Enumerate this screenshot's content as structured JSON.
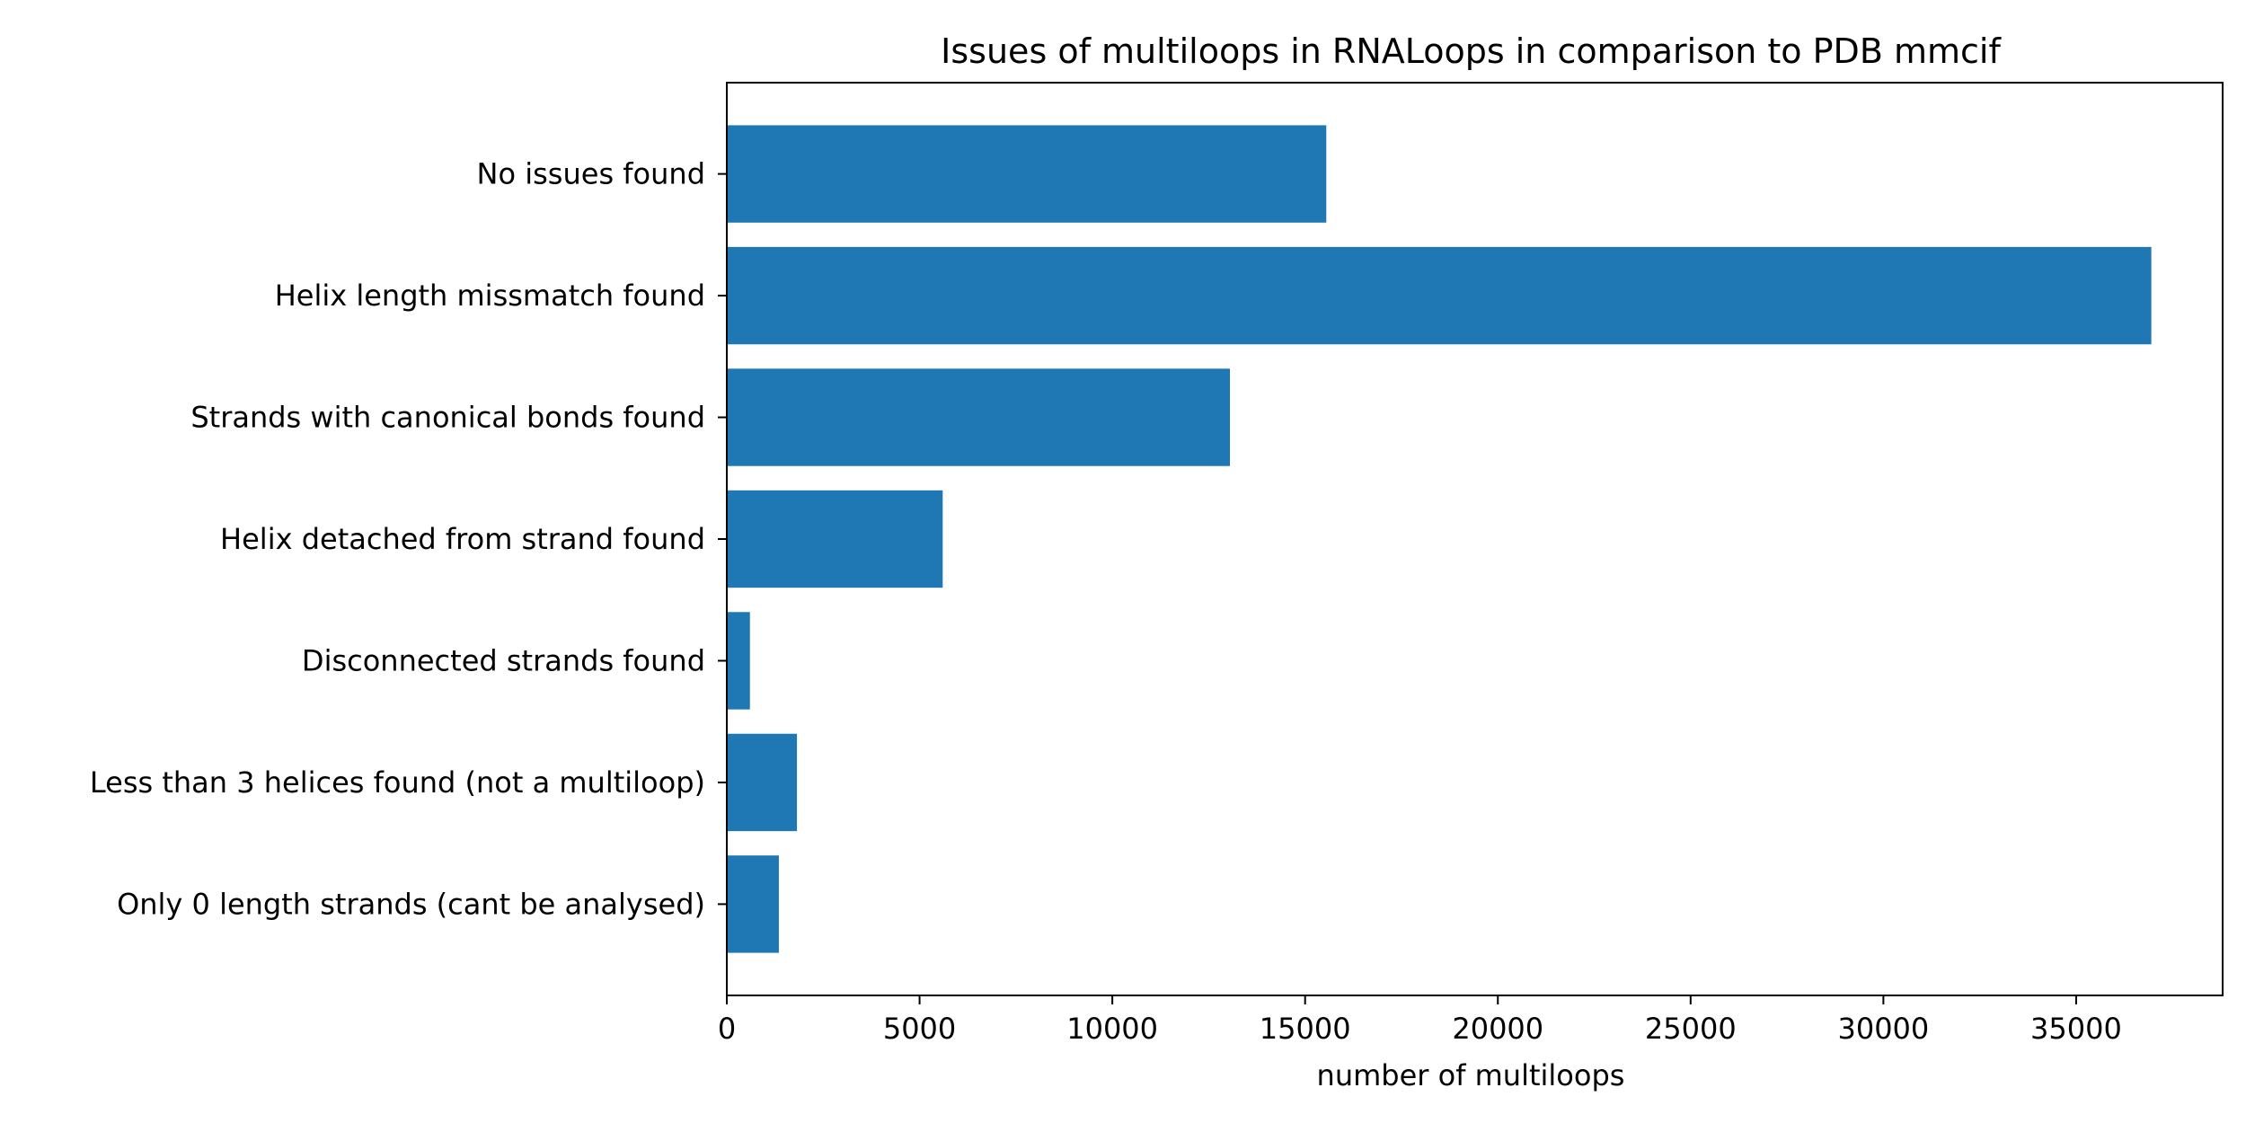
{
  "chart_data": {
    "type": "bar",
    "orientation": "horizontal",
    "title": "Issues of multiloops in RNALoops in comparison to PDB mmcif",
    "xlabel": "number of multiloops",
    "ylabel": "",
    "categories": [
      "No issues found",
      "Helix length missmatch found",
      "Strands with canonical bonds found",
      "Helix detached from strand found",
      "Disconnected strands found",
      "Less than 3 helices found (not a multiloop)",
      "Only 0 length strands (cant be analysed)"
    ],
    "values": [
      15550,
      36950,
      13050,
      5600,
      600,
      1820,
      1350
    ],
    "xlim": [
      0,
      38800
    ],
    "xticks": [
      0,
      5000,
      10000,
      15000,
      20000,
      25000,
      30000,
      35000
    ],
    "grid": false,
    "bar_color": "#1f77b4"
  }
}
